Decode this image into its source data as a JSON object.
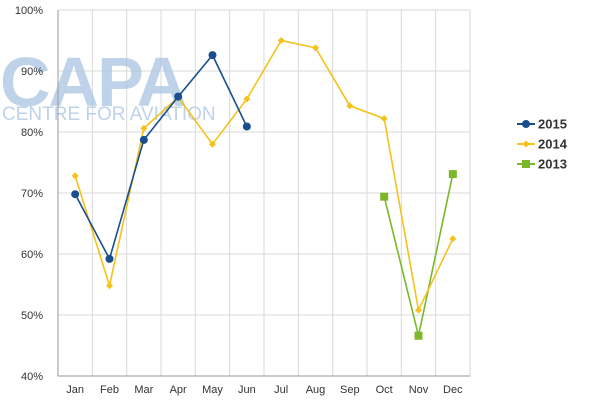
{
  "watermark": {
    "brand": "CAPA",
    "tagline": "CENTRE FOR AVIATION"
  },
  "chart_data": {
    "type": "line",
    "title": "",
    "xlabel": "",
    "ylabel": "",
    "categories": [
      "Jan",
      "Feb",
      "Mar",
      "Apr",
      "May",
      "Jun",
      "Jul",
      "Aug",
      "Sep",
      "Oct",
      "Nov",
      "Dec"
    ],
    "ylim": [
      0.4,
      1.0
    ],
    "yticks": [
      0.4,
      0.5,
      0.6,
      0.7,
      0.8,
      0.9,
      1.0
    ],
    "ytick_labels": [
      "40%",
      "50%",
      "60%",
      "70%",
      "80%",
      "90%",
      "100%"
    ],
    "grid": {
      "horizontal": true,
      "vertical": true
    },
    "legend_position": "right",
    "series": [
      {
        "name": "2015",
        "color": "#1a4f8f",
        "marker": "circle",
        "values": [
          0.698,
          0.592,
          0.787,
          0.858,
          0.926,
          0.809,
          null,
          null,
          null,
          null,
          null,
          null
        ]
      },
      {
        "name": "2014",
        "color": "#f5c11b",
        "marker": "diamond",
        "values": [
          0.728,
          0.548,
          0.806,
          0.857,
          0.78,
          0.854,
          0.95,
          0.938,
          0.843,
          0.822,
          0.508,
          0.625
        ]
      },
      {
        "name": "2013",
        "color": "#7ab82a",
        "marker": "square",
        "values": [
          null,
          null,
          null,
          null,
          null,
          null,
          null,
          null,
          null,
          0.694,
          0.466,
          0.731
        ]
      }
    ]
  }
}
